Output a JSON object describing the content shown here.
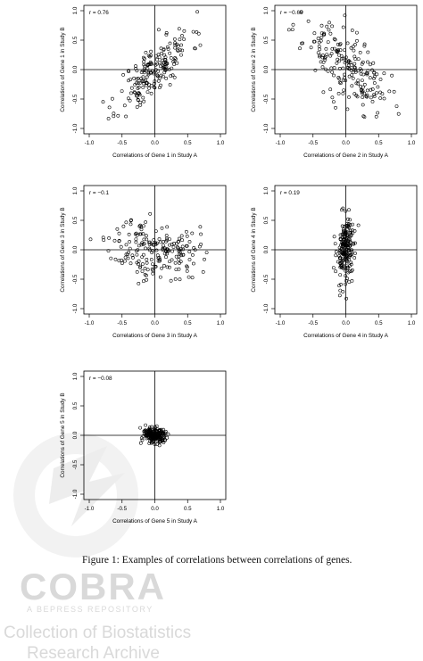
{
  "chart_data": [
    {
      "type": "scatter",
      "xlabel": "Correlations of Gene 1 in Study A",
      "ylabel": "Correlations of Gene 1 in Study B",
      "annotation": "r = 0.76",
      "xlim": [
        -1.0,
        1.0
      ],
      "ylim": [
        -1.0,
        1.0
      ],
      "xticks": [
        "-1.0",
        "-0.5",
        "0.0",
        "0.5",
        "1.0"
      ],
      "yticks": [
        "-1.0",
        "-0.5",
        "0.0",
        "0.5",
        "1.0"
      ],
      "gen": {
        "r": 0.76,
        "sx": 0.28,
        "sy": 0.35,
        "mx": 0.0,
        "my": 0.0,
        "n": 190,
        "seed": 11
      },
      "points": []
    },
    {
      "type": "scatter",
      "xlabel": "Correlations of Gene 2 in Study A",
      "ylabel": "Correlations of Gene 2 in Study B",
      "annotation": "r = −0.68",
      "xlim": [
        -1.0,
        1.0
      ],
      "ylim": [
        -1.0,
        1.0
      ],
      "xticks": [
        "-1.0",
        "-0.5",
        "0.0",
        "0.5",
        "1.0"
      ],
      "yticks": [
        "-1.0",
        "-0.5",
        "0.0",
        "0.5",
        "1.0"
      ],
      "gen": {
        "r": -0.68,
        "sx": 0.32,
        "sy": 0.38,
        "mx": 0.0,
        "my": 0.05,
        "n": 200,
        "seed": 23
      },
      "points": []
    },
    {
      "type": "scatter",
      "xlabel": "Correlations of Gene 3 in Study A",
      "ylabel": "Correlations of Gene 3 in Study B",
      "annotation": "r = −0.1",
      "xlim": [
        -1.0,
        1.0
      ],
      "ylim": [
        -1.0,
        1.0
      ],
      "xticks": [
        "-1.0",
        "-0.5",
        "0.0",
        "0.5",
        "1.0"
      ],
      "yticks": [
        "-1.0",
        "-0.5",
        "0.0",
        "0.5",
        "1.0"
      ],
      "gen": {
        "r": -0.1,
        "sx": 0.33,
        "sy": 0.25,
        "mx": 0.0,
        "my": 0.0,
        "n": 200,
        "seed": 37
      },
      "points": []
    },
    {
      "type": "scatter",
      "xlabel": "Correlations of Gene 4 in Study A",
      "ylabel": "Correlations of Gene 4 in Study B",
      "annotation": "r = 0.19",
      "xlim": [
        -1.0,
        1.0
      ],
      "ylim": [
        -1.0,
        1.0
      ],
      "xticks": [
        "-1.0",
        "-0.5",
        "0.0",
        "0.5",
        "1.0"
      ],
      "yticks": [
        "-1.0",
        "-0.5",
        "0.0",
        "0.5",
        "1.0"
      ],
      "gen": {
        "r": 0.19,
        "sx": 0.07,
        "sy": 0.3,
        "mx": 0.0,
        "my": 0.0,
        "n": 200,
        "seed": 53
      },
      "points": []
    },
    {
      "type": "scatter",
      "xlabel": "Correlations of Gene 5 in Study A",
      "ylabel": "Correlations of Gene 5 in Study B",
      "annotation": "r = −0.08",
      "xlim": [
        -1.0,
        1.0
      ],
      "ylim": [
        -1.0,
        1.0
      ],
      "xticks": [
        "-1.0",
        "-0.5",
        "0.0",
        "0.5",
        "1.0"
      ],
      "yticks": [
        "-1.0",
        "-0.5",
        "0.0",
        "0.5",
        "1.0"
      ],
      "gen": {
        "r": -0.08,
        "sx": 0.1,
        "sy": 0.07,
        "mx": 0.0,
        "my": 0.0,
        "n": 200,
        "seed": 71
      },
      "points": []
    }
  ],
  "caption": "Figure 1: Examples of correlations between correlations of genes.",
  "watermark": {
    "logo": "COBRA",
    "tagline": "A BEPRESS REPOSITORY",
    "line1": "Collection of Biostatistics",
    "line2": "Research Archive"
  }
}
